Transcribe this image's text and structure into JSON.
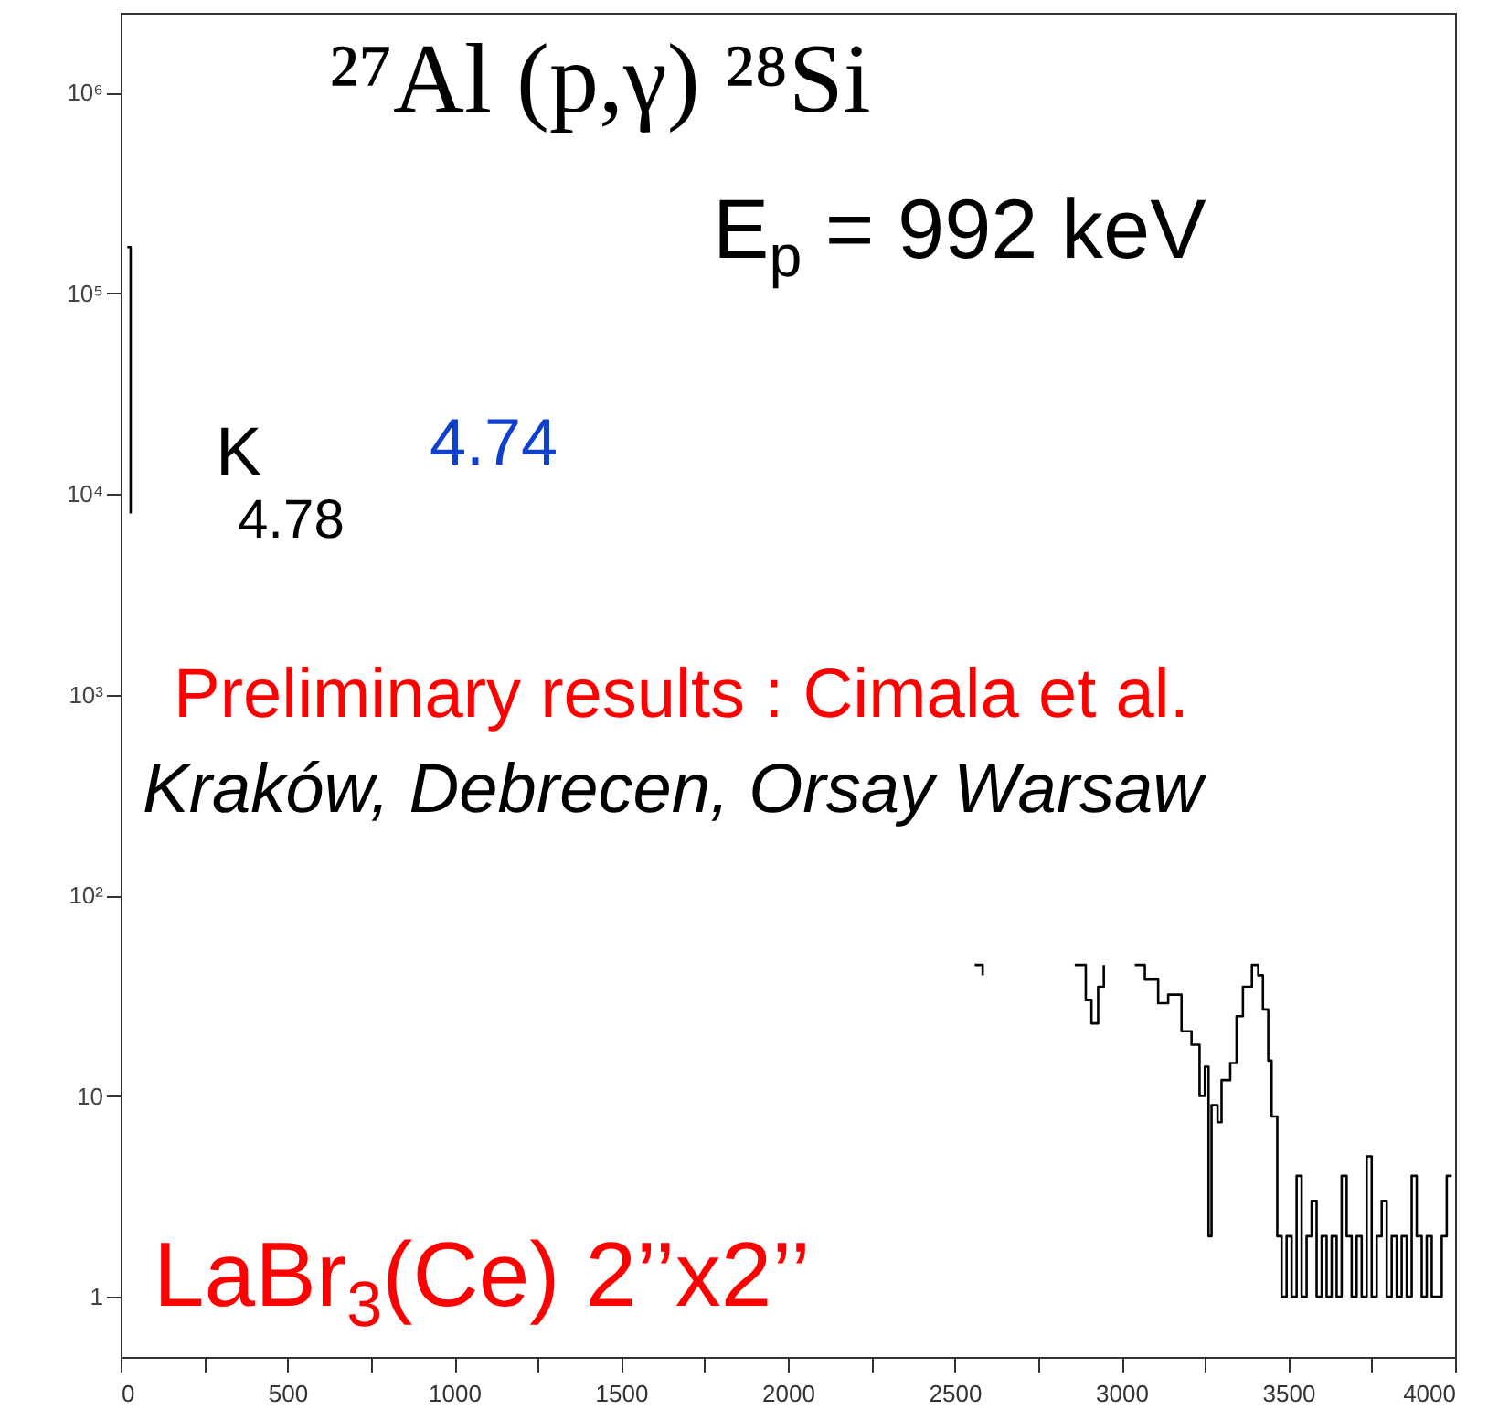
{
  "chart_data": {
    "type": "step",
    "title": "²⁷Al (p,γ) ²⁸Si",
    "subtitle": "E$_{p}$ = 992 keV",
    "annotations": [
      "K",
      "4.74",
      "4.78",
      "Preliminary results : Cimala et al.",
      "Kraków, Debrecen, Orsay Warsaw",
      "LaBr$_{3}$(Ce) 2’’x2’’"
    ],
    "x": [
      20,
      30,
      40,
      2560,
      2584,
      2600,
      2860,
      2893,
      2910,
      2930,
      2947,
      2960,
      3040,
      3070,
      3110,
      3140,
      3180,
      3210,
      3234,
      3250,
      3261,
      3270,
      3288,
      3300,
      3326,
      3345,
      3364,
      3391,
      3410,
      3424,
      3440,
      3450,
      3467,
      3480,
      3495,
      3510,
      3525,
      3540,
      3555,
      3570,
      3585,
      3600,
      3615,
      3630,
      3645,
      3660,
      3675,
      3690,
      3705,
      3720,
      3735,
      3750,
      3765,
      3780,
      3795,
      3810,
      3825,
      3840,
      3855,
      3870,
      3885,
      3900,
      3915,
      3930,
      3945,
      3960,
      3975,
      3990
    ],
    "series": [
      {
        "color": "#000000",
        "values": [
          170000,
          8000,
          null,
          45,
          40,
          null,
          45,
          30,
          23,
          35,
          45,
          null,
          45,
          38,
          29,
          32,
          21,
          18,
          10,
          14,
          2,
          9,
          7.4,
          12,
          14.6,
          25,
          35,
          45,
          40,
          27,
          15,
          7.9,
          2,
          1,
          2,
          1,
          4,
          1,
          2,
          3,
          1,
          2,
          1,
          2,
          1,
          4,
          2,
          1,
          2,
          1,
          5,
          1,
          2,
          3,
          1,
          2,
          1,
          2,
          1,
          4,
          2,
          1,
          2,
          1,
          1,
          2,
          4,
          4
        ]
      }
    ],
    "log": "y",
    "xlim": [
      0,
      4000
    ],
    "ylim": [
      0.5,
      2500000
    ],
    "xticks": [
      0,
      {
        "value": 250,
        "label": null
      },
      500,
      {
        "value": 750,
        "label": null
      },
      1000,
      {
        "value": 1250,
        "label": null
      },
      1500,
      {
        "value": 1750,
        "label": null
      },
      2000,
      {
        "value": 2250,
        "label": null
      },
      2500,
      {
        "value": 2750,
        "label": null
      },
      3000,
      {
        "value": 3250,
        "label": null
      },
      3500,
      {
        "value": 3750,
        "label": null
      },
      4000
    ],
    "yticks": [
      1,
      10,
      {
        "value": 100,
        "label": "10²"
      },
      {
        "value": 1000,
        "label": "10³"
      },
      {
        "value": 10000,
        "label": "10⁴"
      },
      {
        "value": 100000,
        "label": "10⁵"
      },
      {
        "value": 1000000,
        "label": "10⁶"
      }
    ],
    "grid": false,
    "marker": "none"
  }
}
